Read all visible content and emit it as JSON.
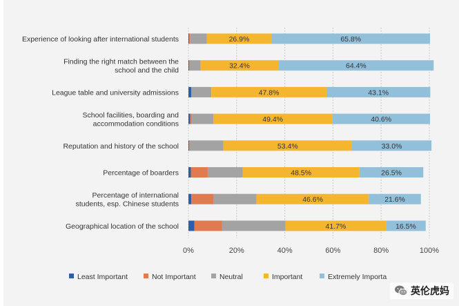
{
  "chart_data": {
    "type": "bar",
    "orientation": "horizontal",
    "stacked": true,
    "categories": [
      [
        "Experience of looking after international students"
      ],
      [
        "Finding the right match between the",
        "school and the child"
      ],
      [
        "League table and university admissions"
      ],
      [
        "School facilities, boarding and",
        "accommodation conditions"
      ],
      [
        "Reputation and history of the school"
      ],
      [
        "Percentage of boarders"
      ],
      [
        "Percentage of international",
        "students, esp. Chinese students"
      ],
      [
        "Geographical location of the school"
      ]
    ],
    "series": [
      {
        "name": "Least Important",
        "color": "#2e5ea8",
        "values": [
          0.3,
          0.3,
          1.2,
          0.7,
          0.3,
          1.0,
          1.2,
          2.5
        ]
      },
      {
        "name": "Not Important",
        "color": "#e07b4f",
        "values": [
          0.3,
          0.1,
          0.1,
          0.7,
          0.1,
          7.0,
          9.3,
          11.5
        ]
      },
      {
        "name": "Neutral",
        "color": "#a3a3a3",
        "values": [
          7.0,
          4.6,
          8.2,
          8.9,
          14.1,
          14.5,
          17.8,
          26.3
        ]
      },
      {
        "name": "Important",
        "color": "#f5b62f",
        "values": [
          26.9,
          32.4,
          47.8,
          49.4,
          53.4,
          48.5,
          46.6,
          41.7
        ]
      },
      {
        "name": "Extremely Important",
        "color": "#92bfd9",
        "values": [
          65.8,
          64.4,
          43.1,
          40.6,
          33.0,
          26.5,
          21.6,
          16.5
        ]
      }
    ],
    "data_labels": [
      [
        "",
        "",
        "",
        "26.9%",
        "65.8%"
      ],
      [
        "",
        "",
        "",
        "32.4%",
        "64.4%"
      ],
      [
        "",
        "",
        "",
        "47.8%",
        "43.1%"
      ],
      [
        "",
        "",
        "",
        "49.4%",
        "40.6%"
      ],
      [
        "",
        "",
        "",
        "53.4%",
        "33.0%"
      ],
      [
        "",
        "",
        "",
        "48.5%",
        "26.5%"
      ],
      [
        "",
        "",
        "",
        "46.6%",
        "21.6%"
      ],
      [
        "",
        "",
        "",
        "41.7%",
        "16.5%"
      ]
    ],
    "xlim": [
      0,
      100
    ],
    "x_ticks": [
      "0%",
      "20%",
      "40%",
      "60%",
      "80%",
      "100%"
    ],
    "x_tick_values": [
      0,
      20,
      40,
      60,
      80,
      100
    ],
    "grid": "vertical-dashed",
    "legend_position": "bottom",
    "legend_labels": [
      "Least Important",
      "Not Important",
      "Neutral",
      "Important",
      "Extremely Importa"
    ]
  },
  "watermark": {
    "icon": "wechat-icon",
    "text": "英伦虎妈"
  }
}
